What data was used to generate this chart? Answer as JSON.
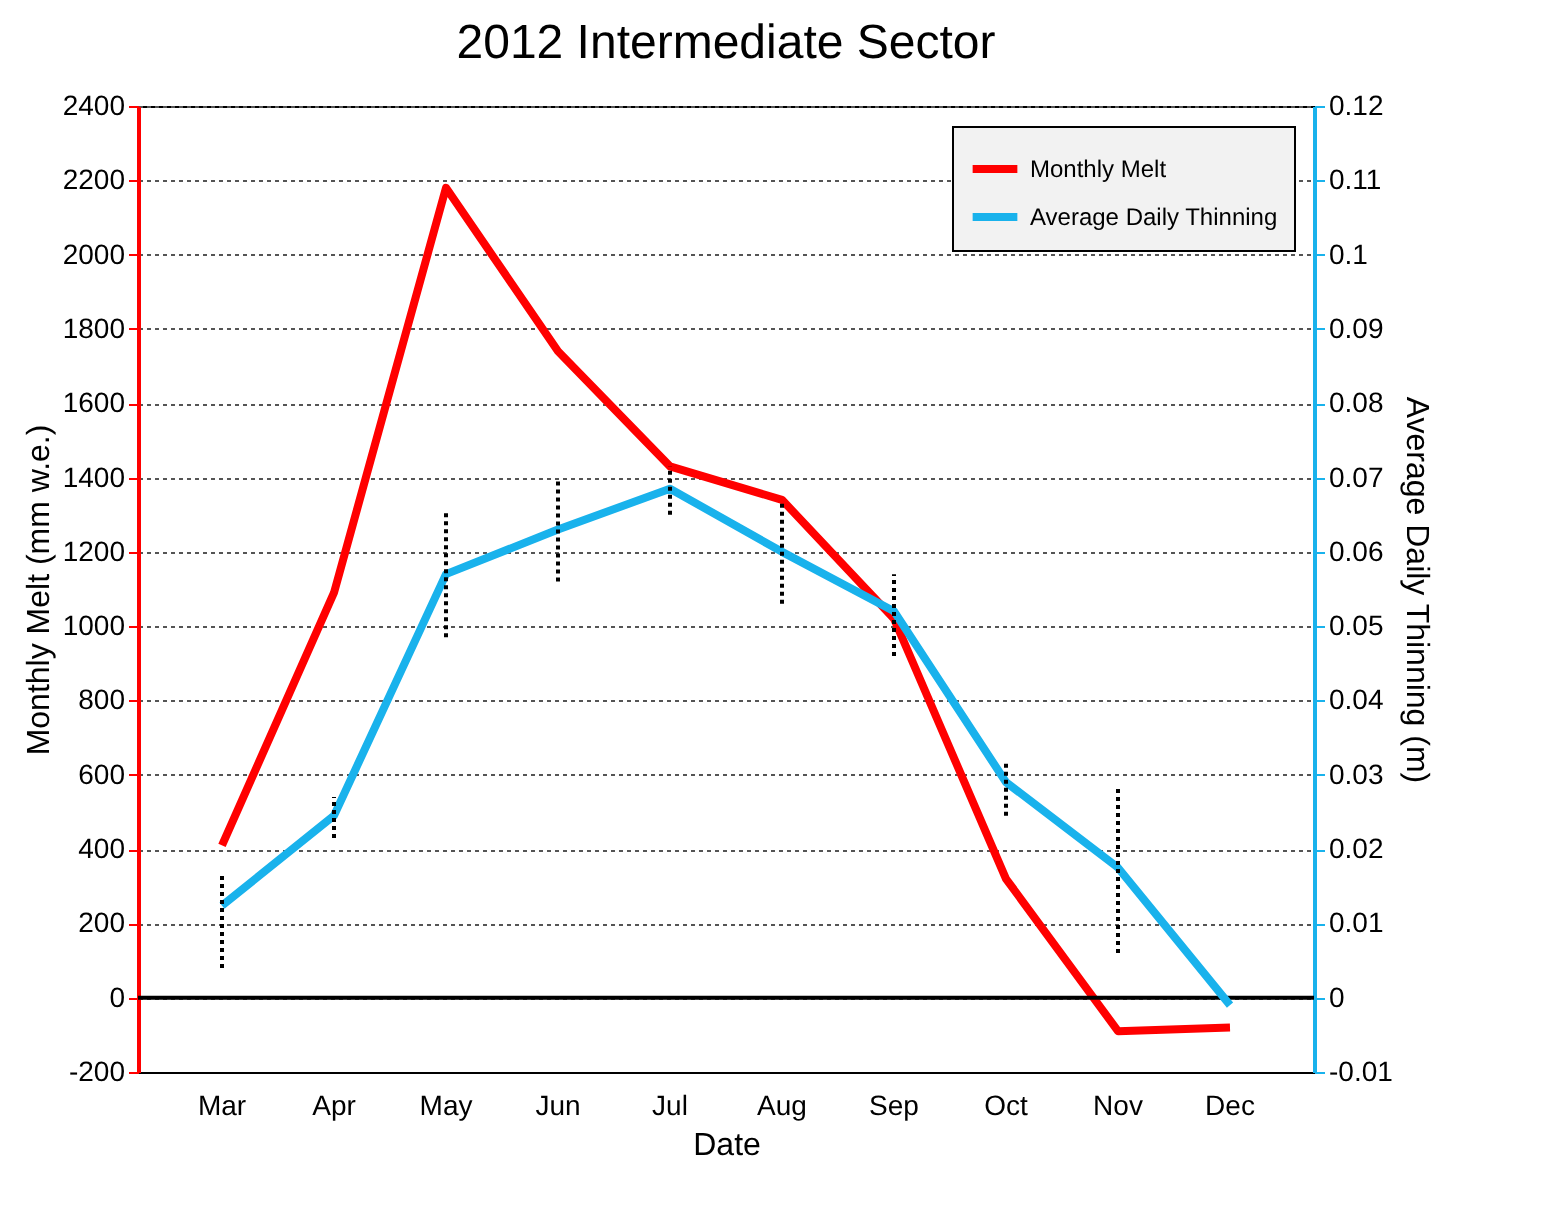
{
  "chart_data": {
    "type": "line",
    "title": "2012 Intermediate Sector",
    "xlabel": "Date",
    "ylabel": "Monthly Melt (mm w.e.)",
    "y2label": "Average Daily Thinning (m)",
    "categories": [
      "Mar",
      "Apr",
      "May",
      "Jun",
      "Jul",
      "Aug",
      "Sep",
      "Oct",
      "Nov",
      "Dec"
    ],
    "series": [
      {
        "name": "Monthly Melt",
        "color": "#ff0000",
        "values": [
          410,
          1090,
          2180,
          1740,
          1430,
          1340,
          1020,
          320,
          -90,
          -80
        ]
      },
      {
        "name": "Average Daily Thinning",
        "color": "#19b2ec",
        "axis": "y2",
        "values": [
          0.0124,
          0.0245,
          0.057,
          0.063,
          0.0685,
          0.06,
          0.052,
          0.029,
          0.0175,
          -0.001
        ],
        "errors": [
          [
            0.004,
            0.0165
          ],
          [
            0.0215,
            0.027
          ],
          [
            0.0485,
            0.0655
          ],
          [
            0.056,
            0.07
          ],
          [
            0.065,
            0.0715
          ],
          [
            0.053,
            0.067
          ],
          [
            0.046,
            0.057
          ],
          [
            0.0245,
            0.032
          ],
          [
            0.006,
            0.0285
          ],
          null
        ]
      }
    ],
    "ylim": [
      -200,
      2400
    ],
    "yticks": [
      -200,
      0,
      200,
      400,
      600,
      800,
      1000,
      1200,
      1400,
      1600,
      1800,
      2000,
      2200,
      2400
    ],
    "y2lim": [
      -0.01,
      0.12
    ],
    "y2ticks": [
      -0.01,
      0,
      0.01,
      0.02,
      0.03,
      0.04,
      0.05,
      0.06,
      0.07,
      0.08,
      0.09,
      0.1,
      0.11,
      0.12
    ],
    "ref_lines": [
      {
        "axis": "y",
        "value": 0,
        "color": "#000000"
      }
    ],
    "grid": "y",
    "legend": "top right"
  }
}
